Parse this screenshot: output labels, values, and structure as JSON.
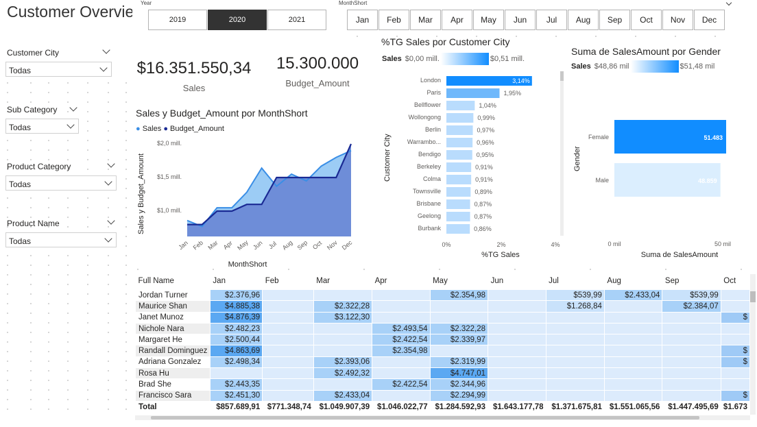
{
  "page": {
    "title": "Customer Overvie"
  },
  "year_slicer": {
    "label": "Year",
    "options": [
      "2019",
      "2020",
      "2021"
    ],
    "selected": "2020"
  },
  "month_slicer": {
    "label": "MonthShort",
    "options": [
      "Jan",
      "Feb",
      "Mar",
      "Apr",
      "May",
      "Jun",
      "Jul",
      "Aug",
      "Sep",
      "Oct",
      "Nov",
      "Dec"
    ]
  },
  "slicers": [
    {
      "label": "Customer City",
      "value": "Todas"
    },
    {
      "label": "Sub Category",
      "value": "Todas"
    },
    {
      "label": "Product Category",
      "value": "Todas"
    },
    {
      "label": "Product Name",
      "value": "Todas"
    }
  ],
  "kpis": {
    "sales": {
      "value": "$16.351.550,34",
      "label": "Sales"
    },
    "budget": {
      "value": "15.300.000",
      "label": "Budget_Amount"
    }
  },
  "line_chart": {
    "title": "Sales y Budget_Amount por MonthShort",
    "legend": [
      "Sales",
      "Budget_Amount"
    ],
    "ylabel": "Sales y Budget_Amount",
    "xlabel": "MonthShort",
    "yticks": [
      "$2,0 mill.",
      "$1,5 mill.",
      "$1,0 mill."
    ],
    "colors": {
      "sales": "#3a8ee6",
      "sales_fill": "#9cccf5",
      "budget": "#1a2a94",
      "budget_fill": "#6c89d6"
    }
  },
  "city_chart": {
    "title": "%TG Sales por Customer City",
    "gradient_label": "Sales",
    "gradient_min": "$0,00 mill.",
    "gradient_max": "$0,51 mill.",
    "ylabel": "Customer City",
    "xlabel": "%TG Sales",
    "xticks": [
      "0%",
      "2%",
      "4%"
    ]
  },
  "gender_chart": {
    "title": "Suma de SalesAmount por Gender",
    "gradient_label": "Sales",
    "gradient_min": "$48,86 mil",
    "gradient_max": "$51,48 mil",
    "ylabel": "Gender",
    "xlabel": "Suma de SalesAmount",
    "xticks": [
      "0 mil",
      "50 mil"
    ]
  },
  "chart_data": [
    {
      "type": "line",
      "title": "Sales y Budget_Amount por MonthShort",
      "x": [
        "Jan",
        "Feb",
        "Mar",
        "Apr",
        "May",
        "Jun",
        "Jul",
        "Aug",
        "Sep",
        "Oct",
        "Nov",
        "Dec"
      ],
      "series": [
        {
          "name": "Sales",
          "values": [
            0.86,
            0.77,
            1.05,
            1.05,
            1.28,
            1.64,
            1.37,
            1.55,
            1.45,
            1.67,
            1.8,
            1.9
          ]
        },
        {
          "name": "Budget_Amount",
          "values": [
            0.8,
            0.8,
            1.0,
            1.0,
            1.1,
            1.1,
            1.5,
            1.5,
            1.5,
            1.5,
            1.5,
            2.0
          ]
        }
      ],
      "ylabel": "Sales y Budget_Amount",
      "xlabel": "MonthShort",
      "ylim": [
        0.55,
        2.05
      ]
    },
    {
      "type": "bar",
      "title": "%TG Sales por Customer City",
      "categories": [
        "London",
        "Paris",
        "Bellflower",
        "Wollongong",
        "Berlin",
        "Warrambo...",
        "Bendigo",
        "Berkeley",
        "Colma",
        "Townsville",
        "Brisbane",
        "Geelong",
        "Burbank"
      ],
      "values": [
        3.14,
        1.95,
        1.04,
        0.99,
        0.97,
        0.96,
        0.95,
        0.91,
        0.91,
        0.89,
        0.87,
        0.87,
        0.86
      ],
      "labels": [
        "3,14%",
        "1,95%",
        "1,04%",
        "0,99%",
        "0,97%",
        "0,96%",
        "0,95%",
        "0,91%",
        "0,91%",
        "0,89%",
        "0,87%",
        "0,87%",
        "0,86%"
      ],
      "xlim": [
        0,
        4
      ],
      "ylabel": "Customer City",
      "xlabel": "%TG Sales"
    },
    {
      "type": "bar",
      "title": "Suma de SalesAmount por Gender",
      "categories": [
        "Female",
        "Male"
      ],
      "values": [
        51483,
        48859
      ],
      "labels": [
        "51.483",
        "48.859"
      ],
      "xlim": [
        0,
        51483
      ],
      "ylabel": "Gender",
      "xlabel": "Suma de SalesAmount"
    }
  ],
  "matrix": {
    "columns": [
      "Full Name",
      "Jan",
      "Feb",
      "Mar",
      "Apr",
      "May",
      "Jun",
      "Jul",
      "Aug",
      "Sep",
      "Oct"
    ],
    "rows": [
      {
        "name": "Jordan Turner",
        "cells": [
          "$2.376,96",
          "",
          "",
          "",
          "$2.354,98",
          "",
          "$539,99",
          "$2.433,04",
          "$539,99",
          ""
        ]
      },
      {
        "name": "Maurice Shan",
        "cells": [
          "$4.885,38",
          "",
          "$2.322,28",
          "",
          "",
          "",
          "$1.268,84",
          "",
          "$2.384,07",
          ""
        ]
      },
      {
        "name": "Janet Munoz",
        "cells": [
          "$4.876,39",
          "",
          "$3.122,30",
          "",
          "",
          "",
          "",
          "",
          "",
          "$"
        ]
      },
      {
        "name": "Nichole Nara",
        "cells": [
          "$2.482,23",
          "",
          "",
          "$2.493,54",
          "$2.322,28",
          "",
          "",
          "",
          "",
          ""
        ]
      },
      {
        "name": "Margaret He",
        "cells": [
          "$2.500,44",
          "",
          "",
          "$2.422,54",
          "$2.339,97",
          "",
          "",
          "",
          "",
          ""
        ]
      },
      {
        "name": "Randall Dominguez",
        "cells": [
          "$4.863,69",
          "",
          "",
          "$2.354,98",
          "",
          "",
          "",
          "",
          "",
          "$"
        ]
      },
      {
        "name": "Adriana Gonzalez",
        "cells": [
          "$2.498,34",
          "",
          "$2.393,06",
          "",
          "$2.319,99",
          "",
          "",
          "",
          "",
          "$"
        ]
      },
      {
        "name": "Rosa Hu",
        "cells": [
          "",
          "",
          "$2.492,32",
          "",
          "$4.747,01",
          "",
          "",
          "",
          "",
          ""
        ]
      },
      {
        "name": "Brad She",
        "cells": [
          "$2.443,35",
          "",
          "",
          "$2.422,54",
          "$2.344,96",
          "",
          "",
          "",
          "",
          ""
        ]
      },
      {
        "name": "Francisco Sara",
        "cells": [
          "$2.451,30",
          "",
          "$2.433,04",
          "",
          "$2.294,99",
          "",
          "",
          "",
          "",
          "$"
        ]
      }
    ],
    "total": {
      "name": "Total",
      "cells": [
        "$857.689,91",
        "$771.348,74",
        "$1.049.907,39",
        "$1.046.022,77",
        "$1.284.592,93",
        "$1.643.177,78",
        "$1.371.675,81",
        "$1.551.065,56",
        "$1.447.495,69",
        "$1.673"
      ]
    }
  }
}
